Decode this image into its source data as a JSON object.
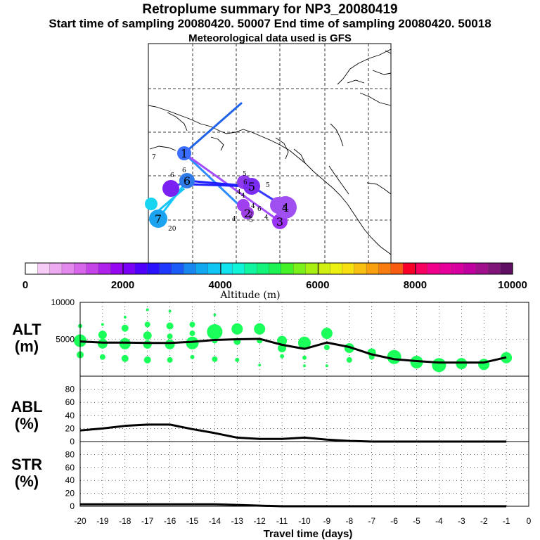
{
  "header": {
    "title": "Retroplume summary for NP3_20080419",
    "subtitle": "Start time of sampling 20080420. 50007     End time of sampling 20080420. 50018",
    "met": "Meteorological data used is GFS"
  },
  "chart_data": [
    {
      "type": "map",
      "title": "Retroplume trajectory map",
      "segments": [
        {
          "from": "start",
          "to": "1",
          "color": "#1e63e8"
        },
        {
          "from": "1",
          "to": "2",
          "color": "#2e8cff"
        },
        {
          "from": "1",
          "to": "3",
          "color": "#a34dff"
        },
        {
          "from": "3",
          "to": "4",
          "color": "#8a2be2"
        },
        {
          "from": "4",
          "to": "5",
          "color": "#3b3bff"
        },
        {
          "from": "5",
          "to": "6",
          "color": "#2020ff"
        },
        {
          "from": "6",
          "to": "7",
          "color": "#12c8ff"
        }
      ],
      "markers": [
        {
          "id": "1",
          "label": "1",
          "color": "#3a6cff"
        },
        {
          "id": "2",
          "label": "2",
          "color": "#a040e6"
        },
        {
          "id": "3",
          "label": "3",
          "color": "#9a34f2"
        },
        {
          "id": "4",
          "label": "4",
          "color": "#a050f0"
        },
        {
          "id": "5",
          "label": "5",
          "color": "#7a2cf0"
        },
        {
          "id": "6",
          "label": "6",
          "color": "#2d7ae8"
        },
        {
          "id": "7",
          "label": "7",
          "color": "#1ba3ef"
        }
      ],
      "small_labels": [
        "7",
        "6",
        "6",
        "5",
        "4",
        "5",
        "4",
        "6",
        "20",
        "4",
        "4",
        "5",
        "6",
        "4",
        "5",
        "2"
      ]
    },
    {
      "type": "colorbar",
      "xlabel": "Altitude (m)",
      "tick_labels": [
        "0",
        "2000",
        "4000",
        "6000",
        "8000",
        "10000"
      ],
      "range": [
        0,
        10000
      ],
      "colors": [
        "#ffffff",
        "#f6ccf6",
        "#eeaaf0",
        "#e388ec",
        "#d766ea",
        "#c544e8",
        "#ae22ec",
        "#9608f2",
        "#7a00f8",
        "#4f00fa",
        "#2a12ff",
        "#1e38ff",
        "#1b5cf8",
        "#1888f0",
        "#12a8f0",
        "#10c6f4",
        "#12e4ef",
        "#10f5d8",
        "#10f5a0",
        "#12f47a",
        "#1cf252",
        "#44f228",
        "#7af21a",
        "#a8f012",
        "#d0f012",
        "#ecf010",
        "#f8e010",
        "#f8c010",
        "#f8a010",
        "#f87c10",
        "#f85c10",
        "#f80028",
        "#f80060",
        "#f0008a",
        "#e8009a",
        "#d8009e",
        "#c0009e",
        "#a0108c",
        "#801478",
        "#601060"
      ]
    },
    {
      "type": "scatter+line",
      "title": "ALT (m)",
      "ylabel": "ALT (m)",
      "ylim": [
        0,
        10000
      ],
      "tick_labels": [
        "10000",
        "5000"
      ],
      "line_x": [
        -20,
        -19,
        -18,
        -17,
        -16,
        -15,
        -14,
        -13,
        -12,
        -11,
        -10,
        -9,
        -8,
        -7,
        -6,
        -5,
        -4,
        -3,
        -2,
        -1
      ],
      "line_y": [
        4700,
        4550,
        4550,
        4500,
        4500,
        4650,
        4900,
        5000,
        5050,
        4250,
        3700,
        4550,
        3950,
        2950,
        2300,
        2050,
        1850,
        1850,
        1850,
        2550
      ],
      "points": [
        [
          -20,
          4800,
          9
        ],
        [
          -20,
          2900,
          5
        ],
        [
          -20,
          6800,
          3
        ],
        [
          -19,
          5600,
          6
        ],
        [
          -19,
          4400,
          7
        ],
        [
          -19,
          2600,
          4
        ],
        [
          -19,
          7000,
          2
        ],
        [
          -18,
          6500,
          5
        ],
        [
          -18,
          4400,
          8
        ],
        [
          -18,
          2400,
          5
        ],
        [
          -18,
          8000,
          2
        ],
        [
          -17,
          7000,
          4
        ],
        [
          -17,
          5500,
          6
        ],
        [
          -17,
          4300,
          6
        ],
        [
          -17,
          2200,
          5
        ],
        [
          -17,
          9000,
          2
        ],
        [
          -16,
          6800,
          5
        ],
        [
          -16,
          5400,
          4
        ],
        [
          -16,
          4300,
          7
        ],
        [
          -16,
          2200,
          4
        ],
        [
          -16,
          8800,
          2
        ],
        [
          -15,
          7000,
          4
        ],
        [
          -15,
          5800,
          4
        ],
        [
          -15,
          4500,
          9
        ],
        [
          -15,
          2600,
          3
        ],
        [
          -14,
          6000,
          11
        ],
        [
          -14,
          4800,
          4
        ],
        [
          -14,
          2300,
          4
        ],
        [
          -14,
          8300,
          2
        ],
        [
          -13,
          6400,
          8
        ],
        [
          -13,
          4700,
          5
        ],
        [
          -13,
          2200,
          3
        ],
        [
          -12,
          6400,
          8
        ],
        [
          -12,
          4800,
          4
        ],
        [
          -12,
          1500,
          2
        ],
        [
          -11,
          4800,
          7
        ],
        [
          -11,
          3800,
          6
        ],
        [
          -11,
          2700,
          3
        ],
        [
          -10,
          4500,
          9
        ],
        [
          -10,
          2500,
          3
        ],
        [
          -10,
          1400,
          2
        ],
        [
          -9,
          5800,
          8
        ],
        [
          -9,
          3900,
          4
        ],
        [
          -9,
          1400,
          2
        ],
        [
          -8,
          3800,
          7
        ],
        [
          -8,
          2200,
          4
        ],
        [
          -7,
          3200,
          6
        ],
        [
          -7,
          2600,
          4
        ],
        [
          -6,
          2600,
          10
        ],
        [
          -5,
          1900,
          9
        ],
        [
          -4,
          1500,
          10
        ],
        [
          -3,
          1700,
          8
        ],
        [
          -2,
          1600,
          8
        ],
        [
          -1,
          2500,
          8
        ]
      ]
    },
    {
      "type": "line",
      "title": "ABL (%)",
      "ylabel": "ABL (%)",
      "ylim": [
        0,
        100
      ],
      "tick_labels": [
        "80",
        "60",
        "40",
        "20",
        "0"
      ],
      "x": [
        -20,
        -19,
        -18,
        -17,
        -16,
        -15,
        -14,
        -13,
        -12,
        -11,
        -10,
        -9,
        -8,
        -7,
        -6,
        -5,
        -4,
        -3,
        -2,
        -1
      ],
      "y": [
        17,
        20,
        24,
        26,
        26,
        19,
        13,
        6,
        4,
        4,
        6,
        3,
        1,
        0,
        0,
        0,
        0,
        0,
        0,
        0
      ]
    },
    {
      "type": "line",
      "title": "STR (%)",
      "ylabel": "STR (%)",
      "ylim": [
        0,
        100
      ],
      "tick_labels": [
        "80",
        "60",
        "40",
        "20",
        "0"
      ],
      "x": [
        -20,
        -19,
        -18,
        -17,
        -16,
        -15,
        -14,
        -13,
        -12,
        -11,
        -10,
        -9,
        -8,
        -7,
        -6,
        -5,
        -4,
        -3,
        -2,
        -1
      ],
      "y": [
        3,
        3,
        3,
        3,
        3,
        3,
        3,
        2,
        1,
        0,
        0,
        0,
        0,
        0,
        0,
        0,
        0,
        0,
        0,
        0
      ]
    }
  ],
  "xaxis": {
    "label": "Travel time (days)",
    "tick_labels": [
      "-20",
      "-19",
      "-18",
      "-17",
      "-16",
      "-15",
      "-14",
      "-13",
      "-12",
      "-11",
      "-10",
      "-9",
      "-8",
      "-7",
      "-6",
      "-5",
      "-4",
      "-3",
      "-2",
      "-1",
      "0"
    ],
    "range": [
      -20,
      0
    ]
  },
  "panels": {
    "alt": {
      "label1": "ALT",
      "label2": "(m)"
    },
    "abl": {
      "label1": "ABL",
      "label2": "(%)"
    },
    "str": {
      "label1": "STR",
      "label2": "(%)"
    }
  },
  "colors": {
    "line": "#000000",
    "points": "#1aff5a",
    "grid": "#000000"
  }
}
